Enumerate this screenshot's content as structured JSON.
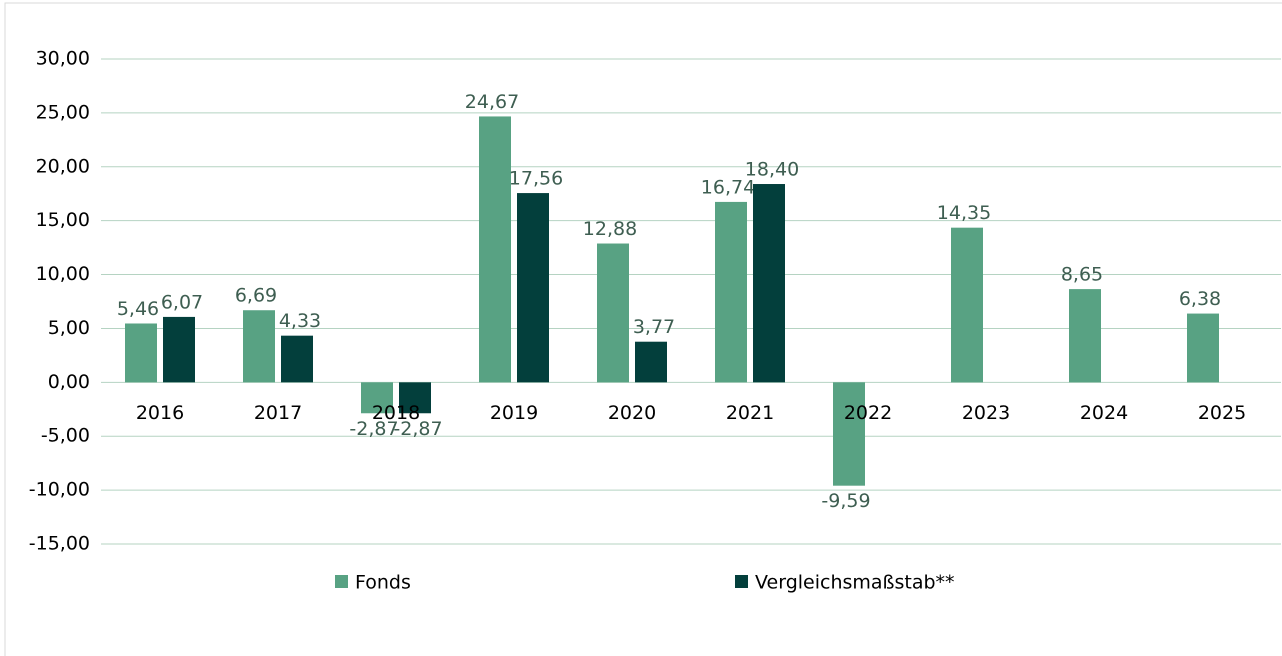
{
  "chart_data": {
    "type": "bar",
    "categories": [
      "2016",
      "2017",
      "2018",
      "2019",
      "2020",
      "2021",
      "2022",
      "2023",
      "2024",
      "2025"
    ],
    "series": [
      {
        "name": "Fonds",
        "color": "#58a283",
        "values": [
          5.46,
          6.69,
          -2.87,
          24.67,
          12.88,
          16.74,
          -9.59,
          14.35,
          8.65,
          6.38
        ],
        "value_labels": [
          "5,46",
          "6,69",
          "-2,87",
          "24,67",
          "12,88",
          "16,74",
          "-9,59",
          "14,35",
          "8,65",
          "6,38"
        ]
      },
      {
        "name": "Vergleichsmaßstab**",
        "color": "#033f3c",
        "values": [
          6.07,
          4.33,
          -2.87,
          17.56,
          3.77,
          18.4,
          null,
          null,
          null,
          null
        ],
        "value_labels": [
          "6,07",
          "4,33",
          "-2,87",
          "17,56",
          "3,77",
          "18,40",
          null,
          null,
          null,
          null
        ]
      }
    ],
    "ylim": [
      -15,
      30
    ],
    "yticks": [
      {
        "value": -15,
        "label": "-15,00"
      },
      {
        "value": -10,
        "label": "-10,00"
      },
      {
        "value": -5,
        "label": "-5,00"
      },
      {
        "value": 0,
        "label": "0,00"
      },
      {
        "value": 5,
        "label": "5,00"
      },
      {
        "value": 10,
        "label": "10,00"
      },
      {
        "value": 15,
        "label": "15,00"
      },
      {
        "value": 20,
        "label": "20,00"
      },
      {
        "value": 25,
        "label": "25,00"
      },
      {
        "value": 30,
        "label": "30,00"
      }
    ],
    "grid": true,
    "legend": "bottom"
  }
}
